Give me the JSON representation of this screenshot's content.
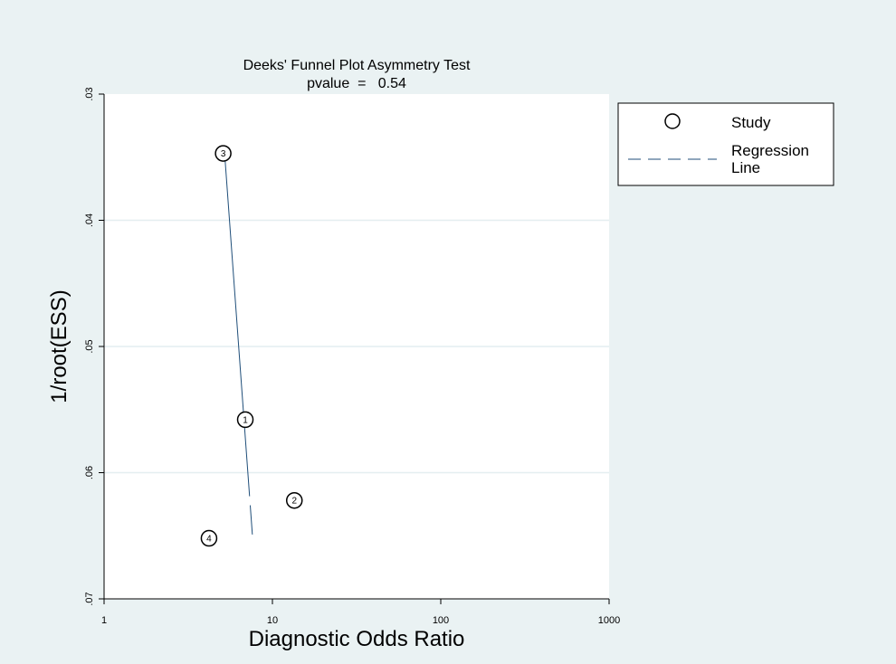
{
  "chart_data": {
    "type": "scatter",
    "title": "Deeks' Funnel Plot Asymmetry Test",
    "subtitle": "pvalue  =   0.54",
    "xlabel": "Diagnostic Odds Ratio",
    "ylabel": "1/root(ESS)",
    "x_scale": "log",
    "y_reversed": true,
    "xlim": [
      1,
      1000
    ],
    "ylim": [
      0.03,
      0.07
    ],
    "x_ticks": [
      1,
      10,
      100,
      1000
    ],
    "x_tick_labels": [
      "1",
      "10",
      "100",
      "1000"
    ],
    "y_ticks": [
      0.03,
      0.04,
      0.05,
      0.06,
      0.07
    ],
    "y_tick_labels": [
      ".03",
      ".04",
      ".05",
      ".06",
      ".07"
    ],
    "grid": "horizontal",
    "legend_position": "right",
    "series": [
      {
        "name": "Study",
        "marker": "hollow-circle",
        "points": [
          {
            "label": "1",
            "x": 6.9,
            "y": 0.0558
          },
          {
            "label": "2",
            "x": 13.5,
            "y": 0.0622
          },
          {
            "label": "3",
            "x": 5.1,
            "y": 0.0347
          },
          {
            "label": "4",
            "x": 4.2,
            "y": 0.0652
          }
        ]
      },
      {
        "name": "Regression\nLine",
        "style": "dashed",
        "color": "#1f4e79",
        "line": [
          {
            "x": 5.2,
            "y": 0.0347
          },
          {
            "x": 7.6,
            "y": 0.0649
          }
        ]
      }
    ],
    "legend": [
      {
        "symbol": "circle",
        "label": "Study"
      },
      {
        "symbol": "dashed-line",
        "label_lines": [
          "Regression",
          "Line"
        ]
      }
    ]
  }
}
